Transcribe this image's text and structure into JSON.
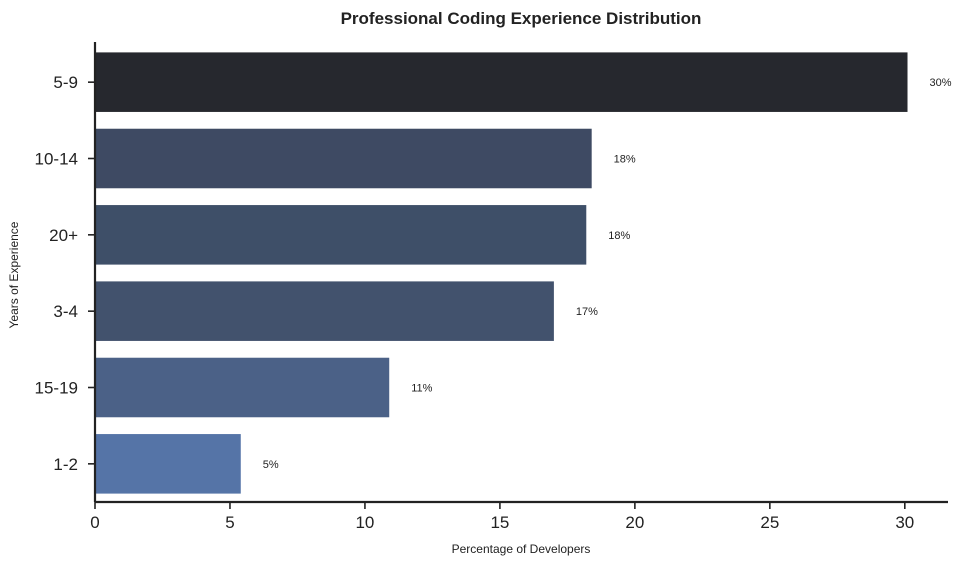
{
  "chart_data": {
    "type": "bar",
    "orientation": "horizontal",
    "title": "Professional Coding Experience Distribution",
    "xlabel": "Percentage of Developers",
    "ylabel": "Years of Experience",
    "categories": [
      "5-9",
      "10-14",
      "20+",
      "3-4",
      "15-19",
      "1-2"
    ],
    "values": [
      30.1,
      18.4,
      18.2,
      17.0,
      10.9,
      5.4
    ],
    "data_labels": [
      "30%",
      "18%",
      "18%",
      "17%",
      "11%",
      "5%"
    ],
    "bar_colors": [
      "#26282e",
      "#3e4a63",
      "#3e4f68",
      "#42526d",
      "#4b6187",
      "#5574a7"
    ],
    "xticks": [
      0,
      5,
      10,
      15,
      20,
      25,
      30
    ],
    "xtick_labels": [
      "0",
      "5",
      "10",
      "15",
      "20",
      "25",
      "30"
    ],
    "xlim": [
      0,
      31.6
    ],
    "grid": false,
    "legend": "none"
  }
}
